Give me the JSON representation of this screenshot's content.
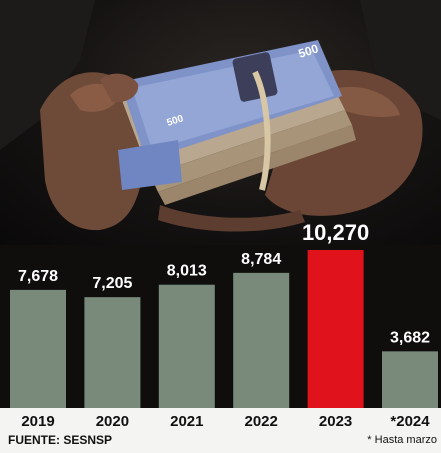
{
  "chart_data": {
    "type": "bar",
    "categories": [
      "2019",
      "2020",
      "2021",
      "2022",
      "2023",
      "*2024"
    ],
    "values": [
      7678,
      7205,
      8013,
      8784,
      10270,
      3682
    ],
    "value_labels": [
      "7,678",
      "7,205",
      "8,013",
      "8,784",
      "10,270",
      "3,682"
    ],
    "ylim": [
      0,
      10270
    ],
    "colors": {
      "default_bar": "#798a7a",
      "highlight_bar": "#e0121b",
      "highlight_index": 4
    },
    "title": "",
    "xlabel": "",
    "ylabel": "",
    "grid": false
  },
  "footer": {
    "source": "FUENTE: SESNSP",
    "note": "* Hasta marzo"
  },
  "photo": {
    "banknote_denomination": "500",
    "icons": [
      "hands-holding-cash-icon"
    ]
  }
}
